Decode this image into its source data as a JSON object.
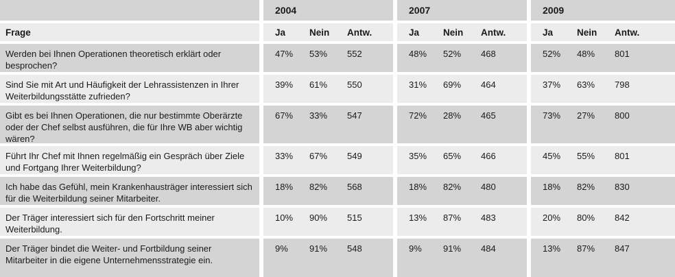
{
  "table": {
    "question_column_header": "Frage",
    "year_groups": [
      "2004",
      "2007",
      "2009"
    ],
    "sub_columns": [
      "Ja",
      "Nein",
      "Antw."
    ],
    "rows": [
      {
        "frage": "Werden bei Ihnen Operationen theoretisch erklärt oder besprochen?",
        "y2004": {
          "ja": "47%",
          "nein": "53%",
          "antw": "552"
        },
        "y2007": {
          "ja": "48%",
          "nein": "52%",
          "antw": "468"
        },
        "y2009": {
          "ja": "52%",
          "nein": "48%",
          "antw": "801"
        }
      },
      {
        "frage": "Sind Sie mit Art und Häufigkeit der Lehrassistenzen in Ihrer Weiterbildungsstätte zufrieden?",
        "y2004": {
          "ja": "39%",
          "nein": "61%",
          "antw": "550"
        },
        "y2007": {
          "ja": "31%",
          "nein": "69%",
          "antw": "464"
        },
        "y2009": {
          "ja": "37%",
          "nein": "63%",
          "antw": "798"
        }
      },
      {
        "frage": "Gibt es bei Ihnen Operationen, die nur bestimmte Oberärzte oder der Chef selbst ausführen, die für Ihre WB aber wichtig wären?",
        "y2004": {
          "ja": "67%",
          "nein": "33%",
          "antw": "547"
        },
        "y2007": {
          "ja": "72%",
          "nein": "28%",
          "antw": "465"
        },
        "y2009": {
          "ja": "73%",
          "nein": "27%",
          "antw": "800"
        }
      },
      {
        "frage": "Führt Ihr Chef mit Ihnen regelmäßig ein Gespräch über Ziele und Fortgang Ihrer Weiterbildung?",
        "y2004": {
          "ja": "33%",
          "nein": "67%",
          "antw": "549"
        },
        "y2007": {
          "ja": "35%",
          "nein": "65%",
          "antw": "466"
        },
        "y2009": {
          "ja": "45%",
          "nein": "55%",
          "antw": "801"
        }
      },
      {
        "frage": "Ich habe das Gefühl, mein Krankenhausträger interessiert sich für die Weiterbildung seiner Mitarbeiter.",
        "y2004": {
          "ja": "18%",
          "nein": "82%",
          "antw": "568"
        },
        "y2007": {
          "ja": "18%",
          "nein": "82%",
          "antw": "480"
        },
        "y2009": {
          "ja": "18%",
          "nein": "82%",
          "antw": "830"
        }
      },
      {
        "frage": "Der Träger interessiert sich für den Fortschritt meiner Weiterbildung.",
        "y2004": {
          "ja": "10%",
          "nein": "90%",
          "antw": "515"
        },
        "y2007": {
          "ja": "13%",
          "nein": "87%",
          "antw": "483"
        },
        "y2009": {
          "ja": "20%",
          "nein": "80%",
          "antw": "842"
        }
      },
      {
        "frage": "Der Träger bindet die Weiter- und Fortbildung seiner Mitarbeiter in die eigene Unternehmensstrategie ein.",
        "y2004": {
          "ja": "9%",
          "nein": "91%",
          "antw": "548"
        },
        "y2007": {
          "ja": "9%",
          "nein": "91%",
          "antw": "484"
        },
        "y2009": {
          "ja": "13%",
          "nein": "87%",
          "antw": "847"
        }
      }
    ]
  },
  "colors": {
    "row_dark": "#d4d4d4",
    "row_light": "#ececec",
    "gutter": "#ffffff",
    "text": "#1a1a1a"
  }
}
